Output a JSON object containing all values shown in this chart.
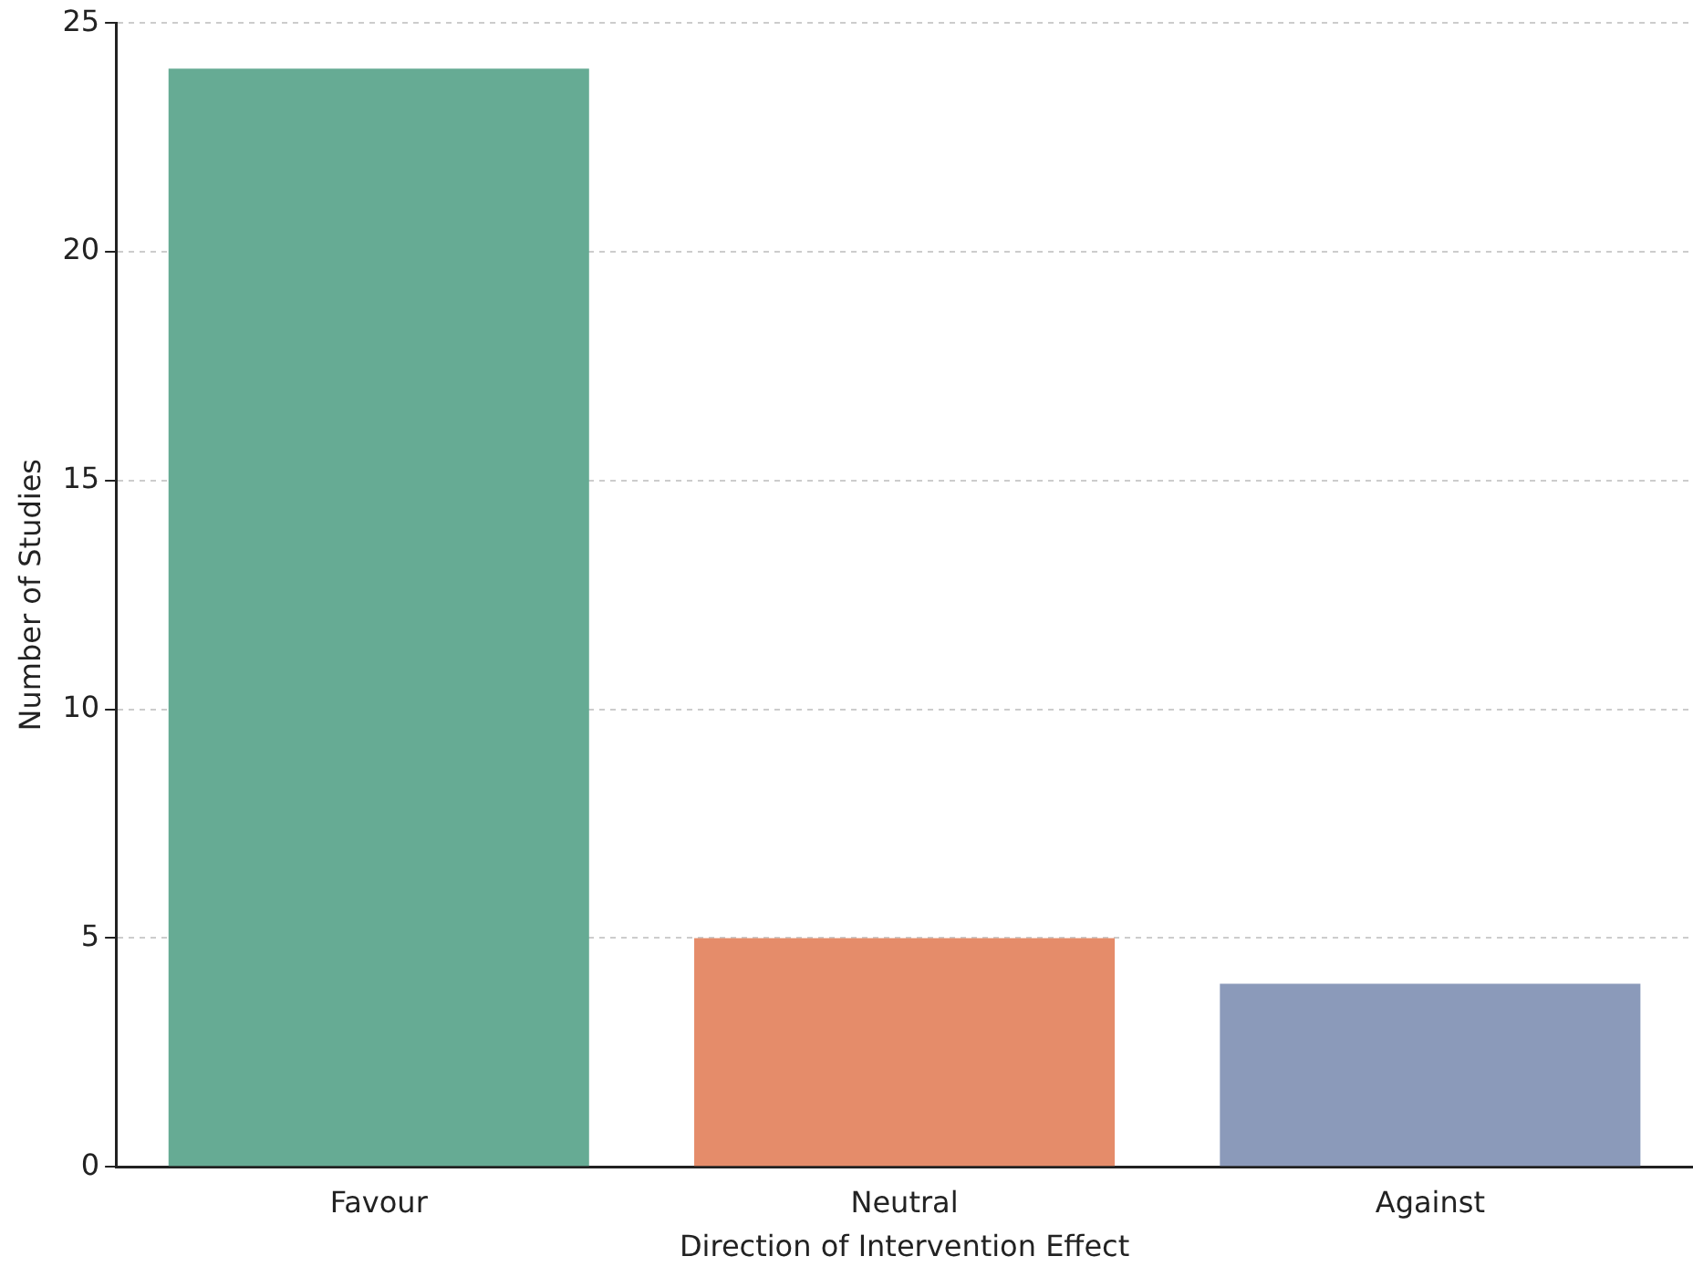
{
  "chart_data": {
    "type": "bar",
    "xlabel": "Direction of Intervention Effect",
    "ylabel": "Number of Studies",
    "categories": [
      "Favour",
      "Neutral",
      "Against"
    ],
    "values": [
      24,
      5,
      4
    ],
    "colors": [
      "#66ab94",
      "#e58c6a",
      "#8b9aba"
    ],
    "ylim": [
      0,
      25
    ],
    "yticks": [
      0,
      5,
      10,
      15,
      20,
      25
    ],
    "grid": "y",
    "legend": false
  }
}
